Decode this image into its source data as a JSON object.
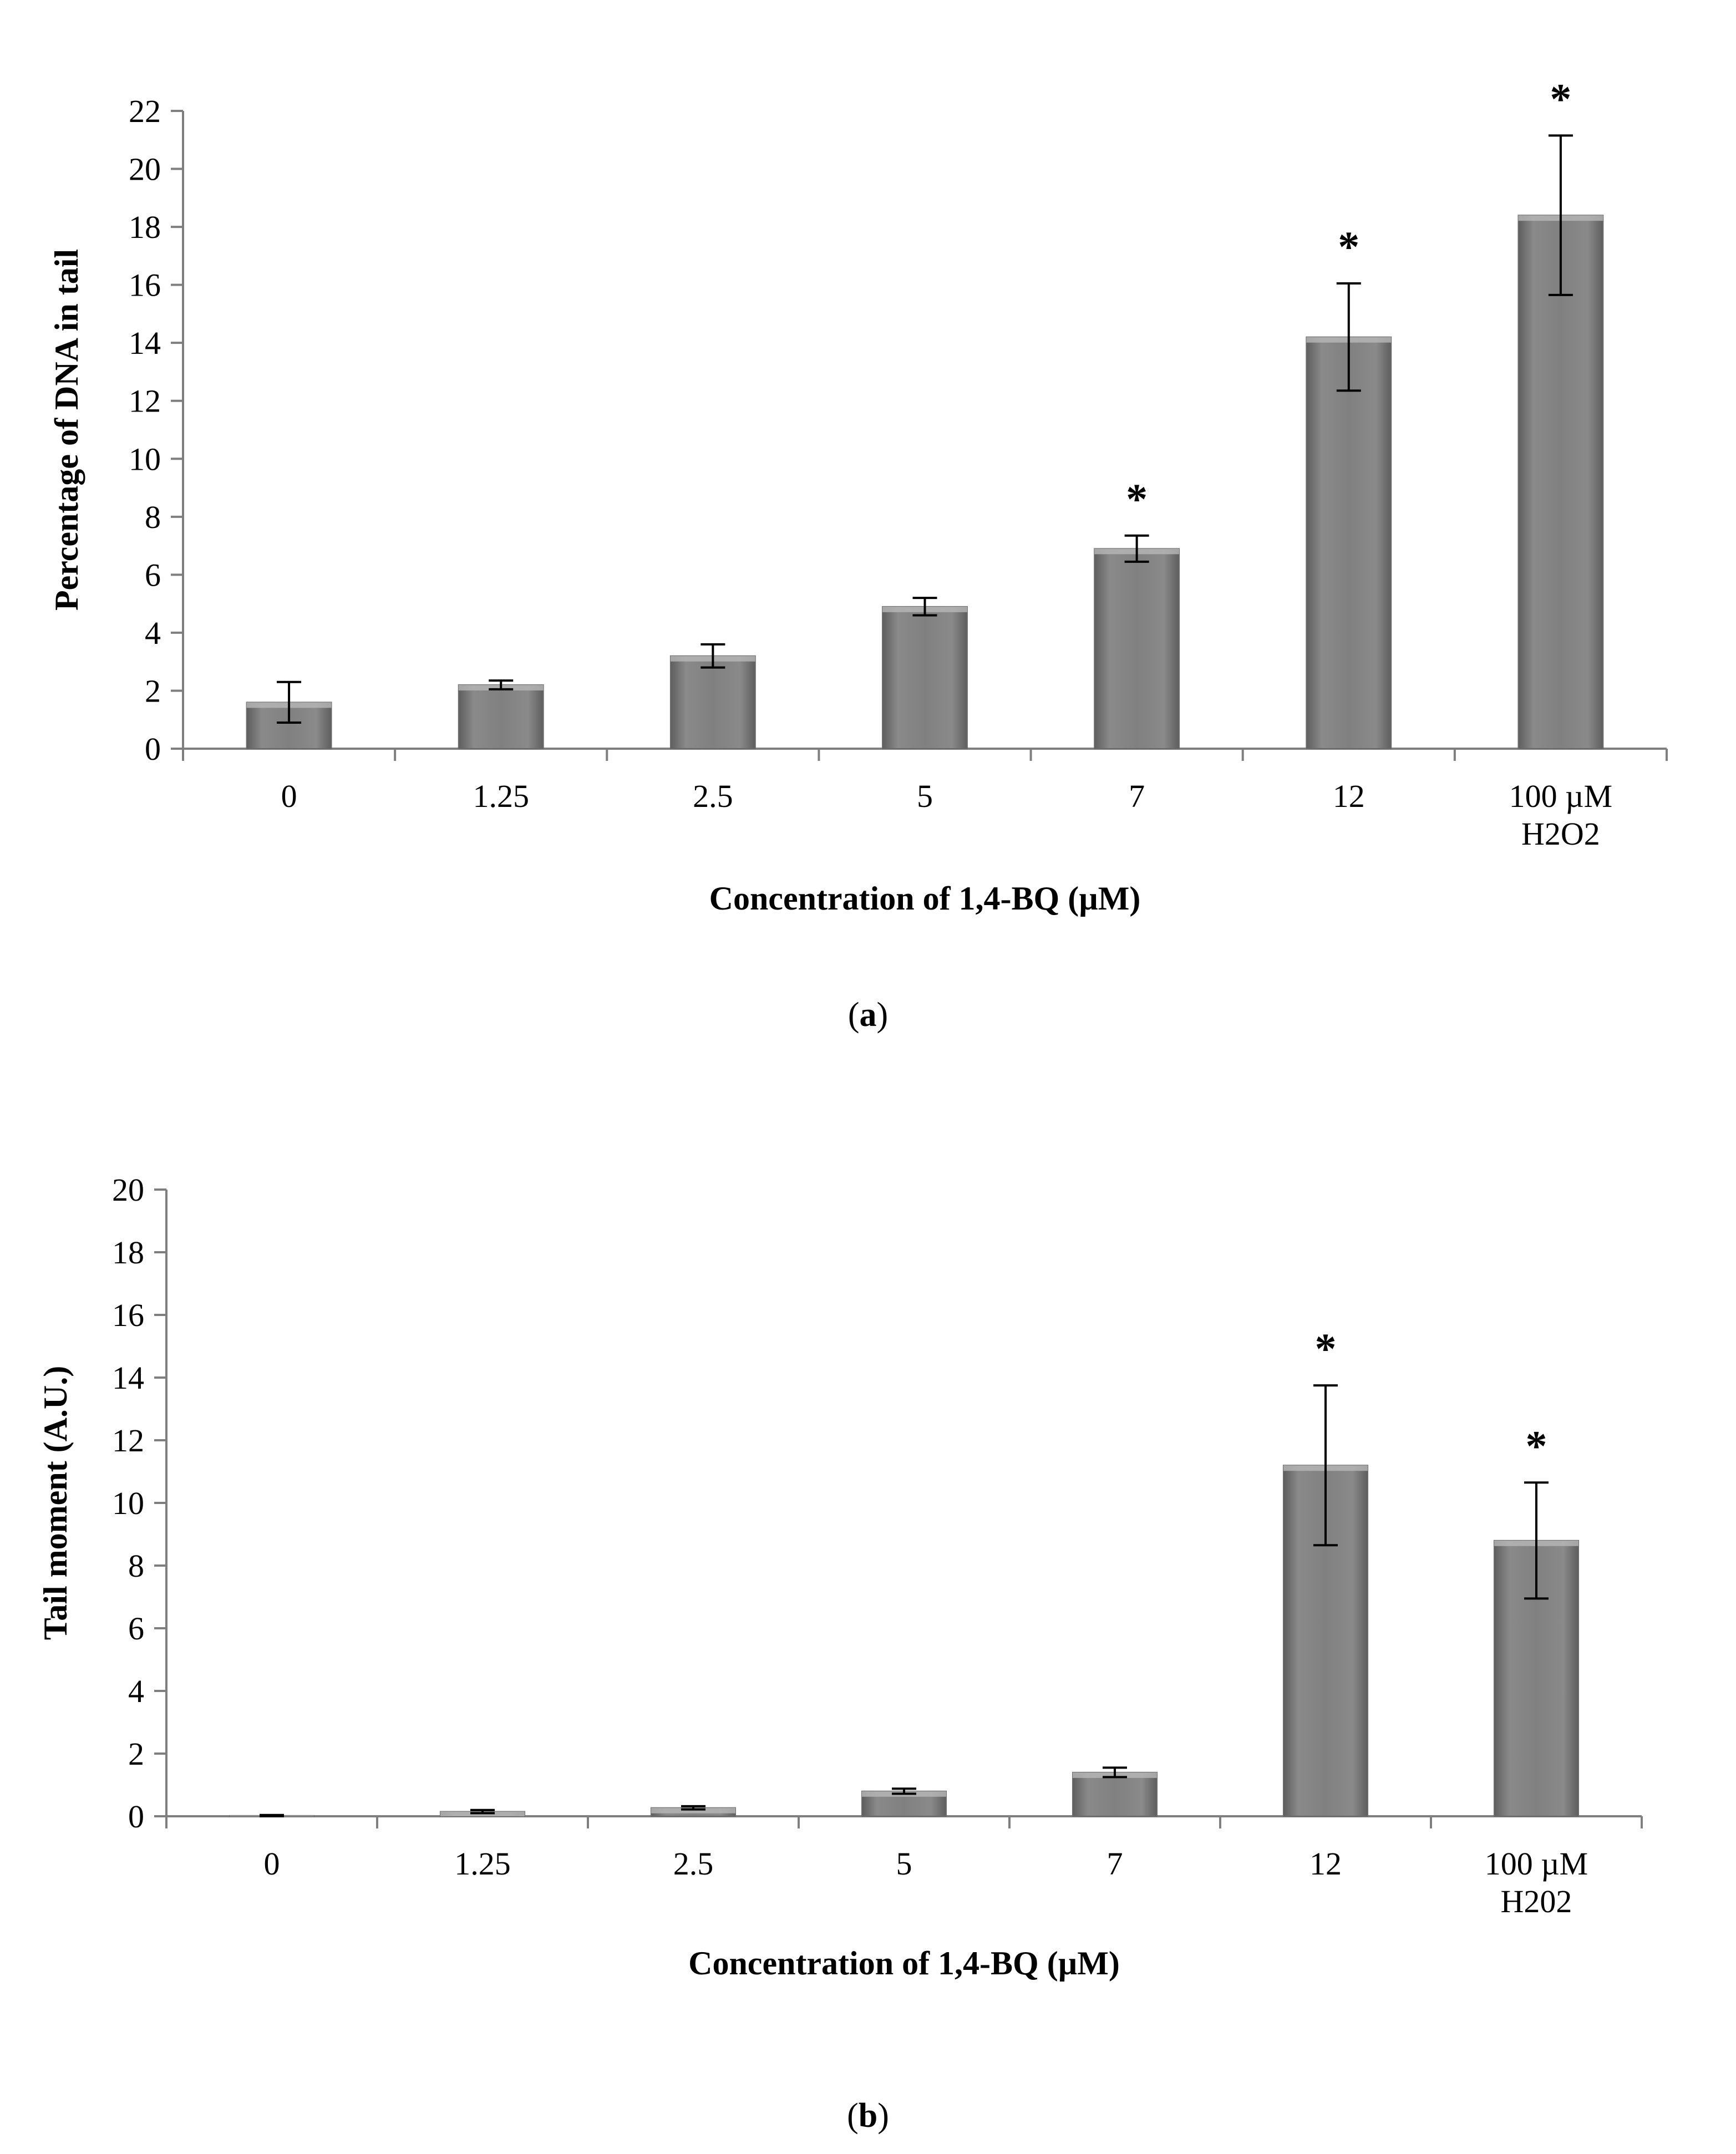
{
  "chart_data": [
    {
      "id": "a",
      "type": "bar",
      "caption_letter": "a",
      "categories": [
        "0",
        "1.25",
        "2.5",
        "5",
        "7",
        "12",
        "100 µM\nH2O2"
      ],
      "values": [
        1.6,
        2.2,
        3.2,
        4.9,
        6.9,
        14.2,
        18.4
      ],
      "errors": [
        0.7,
        0.15,
        0.4,
        0.3,
        0.45,
        1.85,
        2.75
      ],
      "significant": [
        false,
        false,
        false,
        false,
        true,
        true,
        true
      ],
      "significance_marker": "*",
      "xlabel": "Concentration of 1,4-BQ (µM)",
      "ylabel": "Percentage of DNA in tail",
      "ylim": [
        0,
        22
      ],
      "yticks": [
        0,
        2,
        4,
        6,
        8,
        10,
        12,
        14,
        16,
        18,
        20,
        22
      ],
      "bar_color": "#808080",
      "grid": false
    },
    {
      "id": "b",
      "type": "bar",
      "caption_letter": "b",
      "categories": [
        "0",
        "1.25",
        "2.5",
        "5",
        "7",
        "12",
        "100 µM\nH202"
      ],
      "values": [
        0.02,
        0.15,
        0.27,
        0.8,
        1.4,
        11.2,
        8.8
      ],
      "errors": [
        0.02,
        0.05,
        0.05,
        0.08,
        0.15,
        2.55,
        1.85
      ],
      "significant": [
        false,
        false,
        false,
        false,
        false,
        true,
        true
      ],
      "significance_marker": "*",
      "xlabel": "Concentration of  1,4-BQ (µM)",
      "ylabel": "Tail moment (A.U.)",
      "ylim": [
        0,
        20
      ],
      "yticks": [
        0,
        2,
        4,
        6,
        8,
        10,
        12,
        14,
        16,
        18,
        20
      ],
      "bar_color": "#808080",
      "grid": false
    }
  ]
}
